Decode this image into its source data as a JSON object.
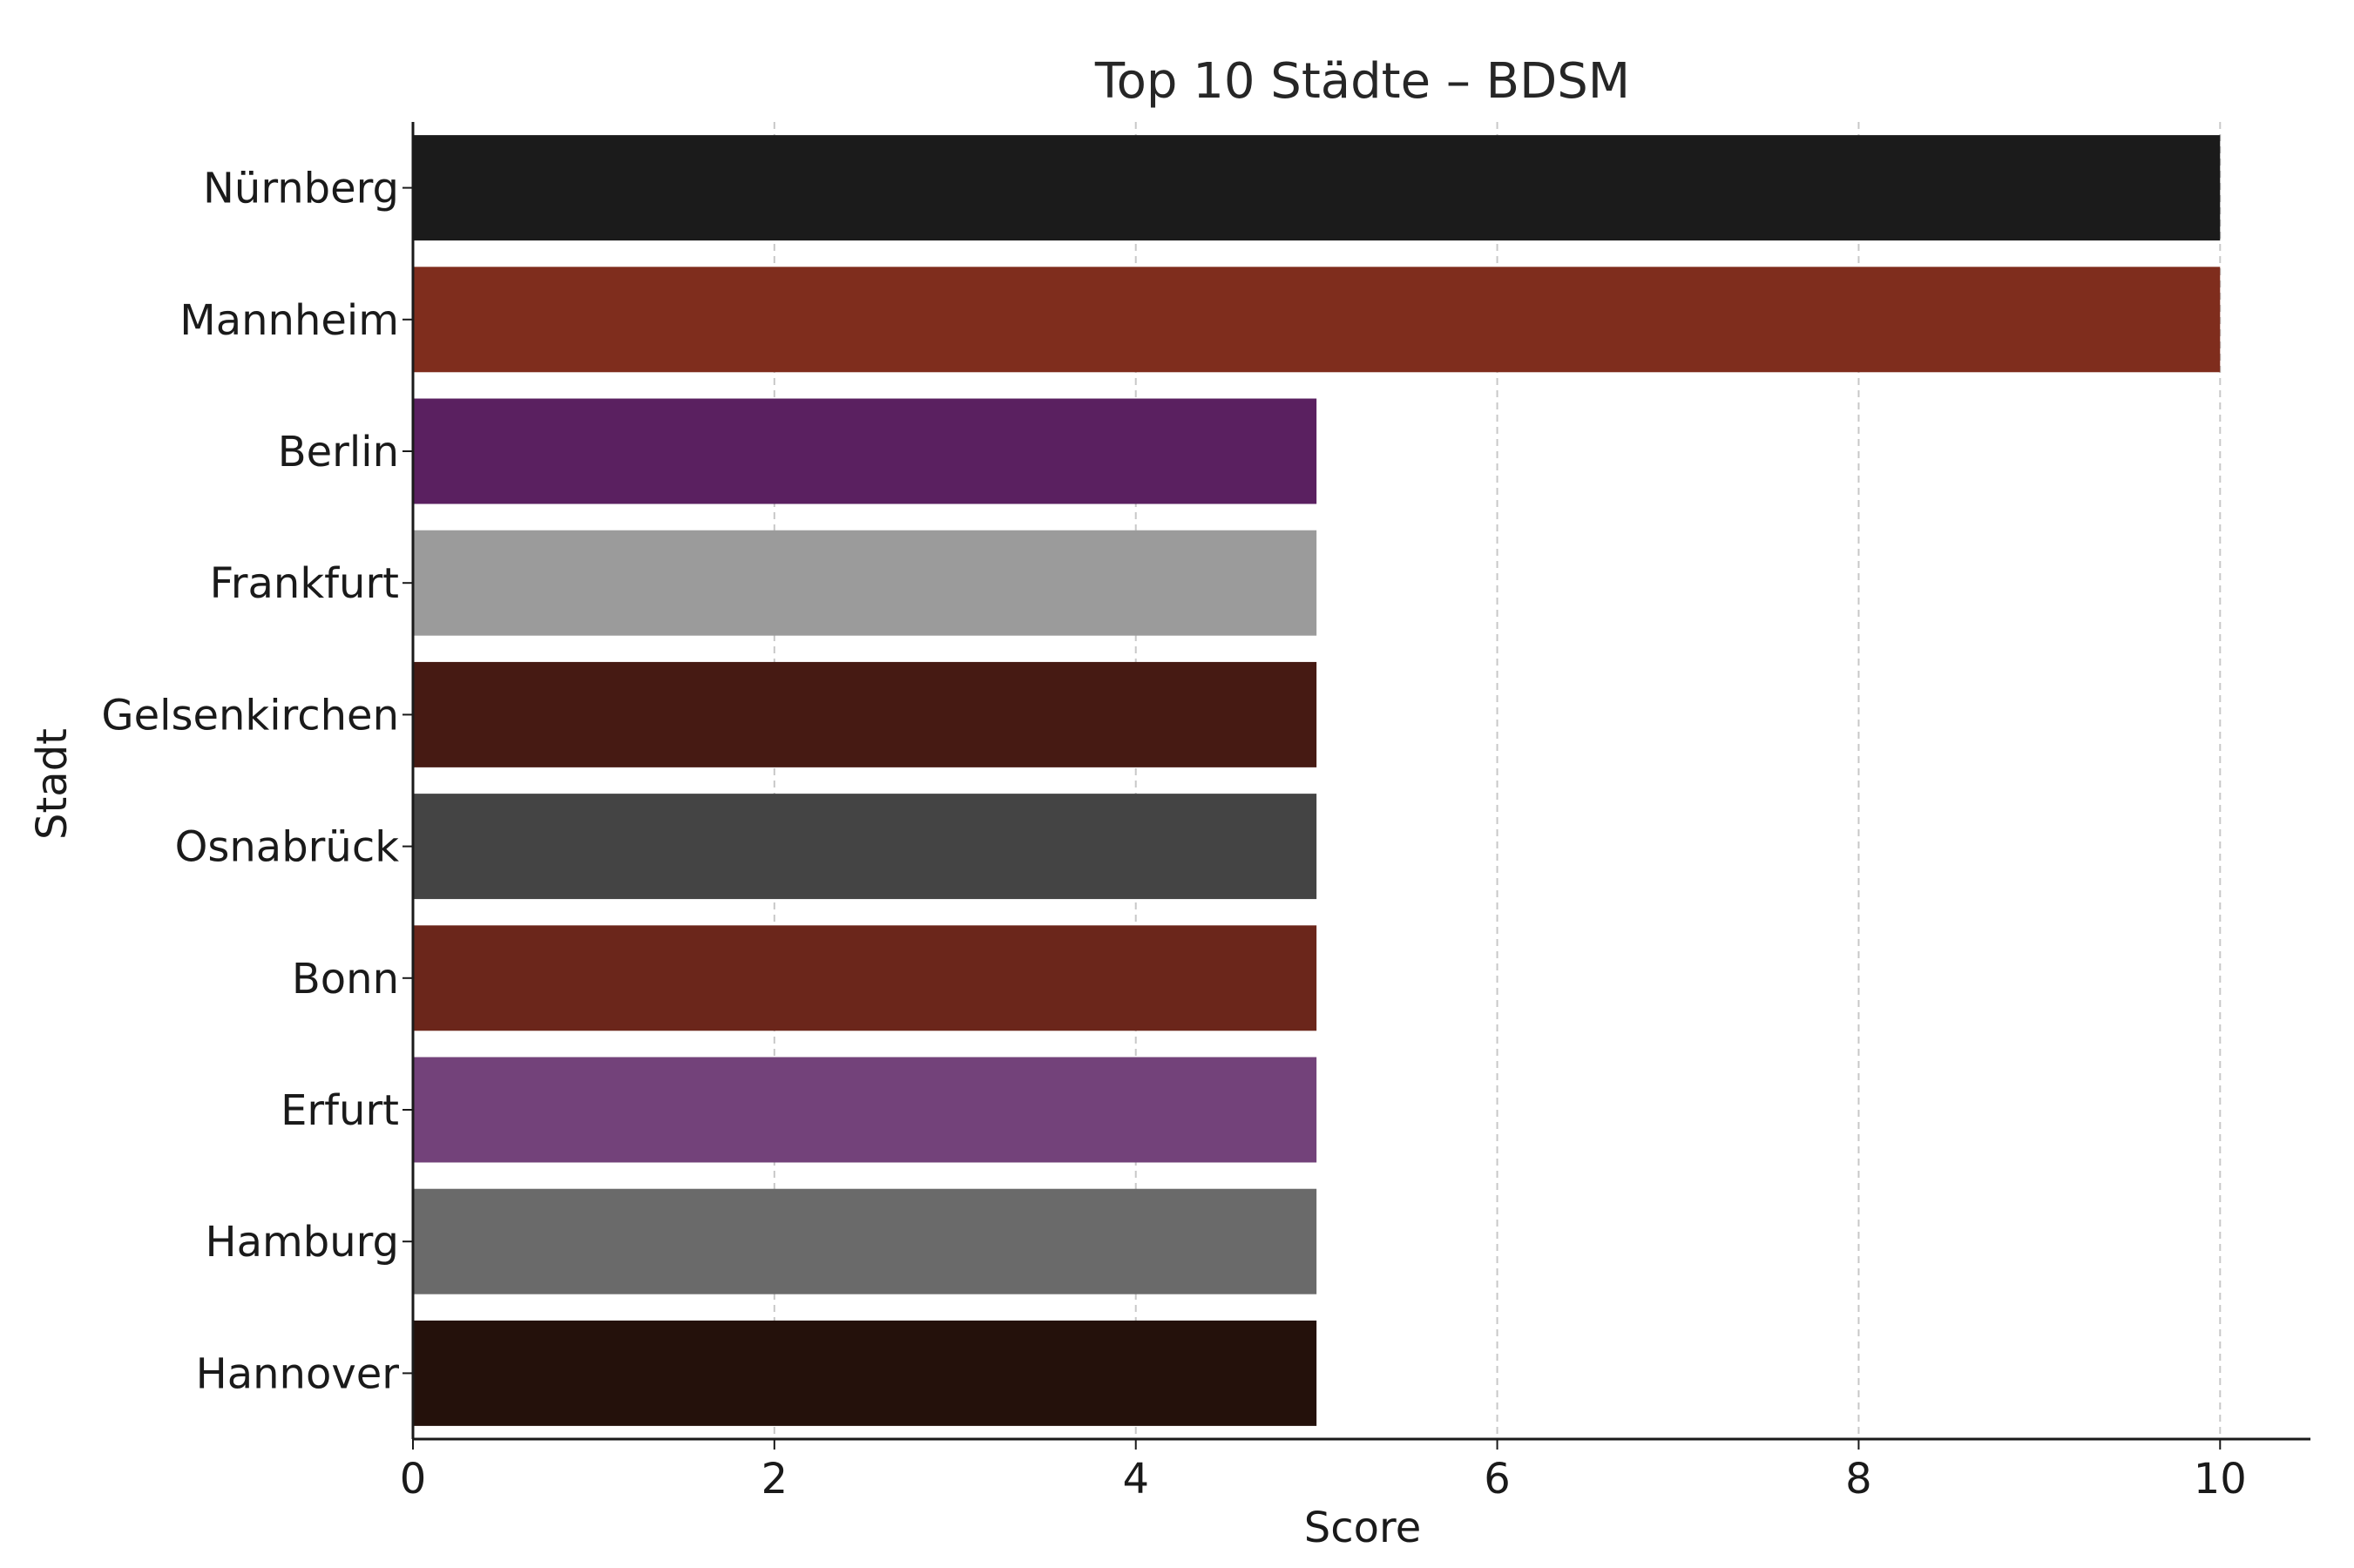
{
  "chart_data": {
    "type": "bar",
    "orientation": "horizontal",
    "title": "Top 10 Städte – BDSM",
    "xlabel": "Score",
    "ylabel": "Stadt",
    "xlim": [
      0,
      10.5
    ],
    "xticks": [
      0,
      2,
      4,
      6,
      8,
      10
    ],
    "grid": "x-dashed",
    "categories": [
      "Nürnberg",
      "Mannheim",
      "Berlin",
      "Frankfurt",
      "Gelsenkirchen",
      "Osnabrück",
      "Bonn",
      "Erfurt",
      "Hamburg",
      "Hannover"
    ],
    "values": [
      10,
      10,
      5,
      5,
      5,
      5,
      5,
      5,
      5,
      5
    ],
    "colors": [
      "#1b1b1b",
      "#7f2d1d",
      "#5a2060",
      "#9b9b9b",
      "#461a13",
      "#444444",
      "#6b261b",
      "#73427a",
      "#6a6a6a",
      "#24110b"
    ]
  }
}
